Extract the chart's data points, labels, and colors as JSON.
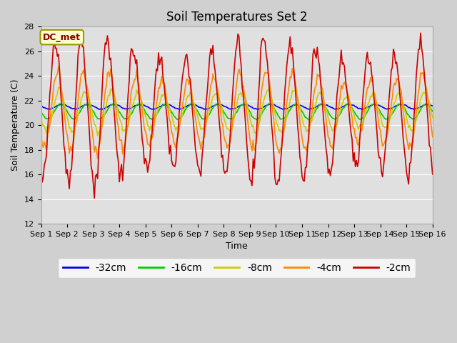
{
  "title": "Soil Temperatures Set 2",
  "xlabel": "Time",
  "ylabel": "Soil Temperature (C)",
  "ylim": [
    12,
    28
  ],
  "annotation": "DC_met",
  "legend_order": [
    "-32cm",
    "-16cm",
    "-8cm",
    "-4cm",
    "-2cm"
  ],
  "colors": {
    "-32cm": "#0000ee",
    "-16cm": "#00cc00",
    "-8cm": "#cccc00",
    "-4cm": "#ff8800",
    "-2cm": "#cc0000"
  },
  "plot_bg": "#e0e0e0",
  "fig_bg": "#d0d0d0",
  "title_fontsize": 12,
  "axis_label_fontsize": 9,
  "tick_fontsize": 8,
  "legend_fontsize": 10
}
